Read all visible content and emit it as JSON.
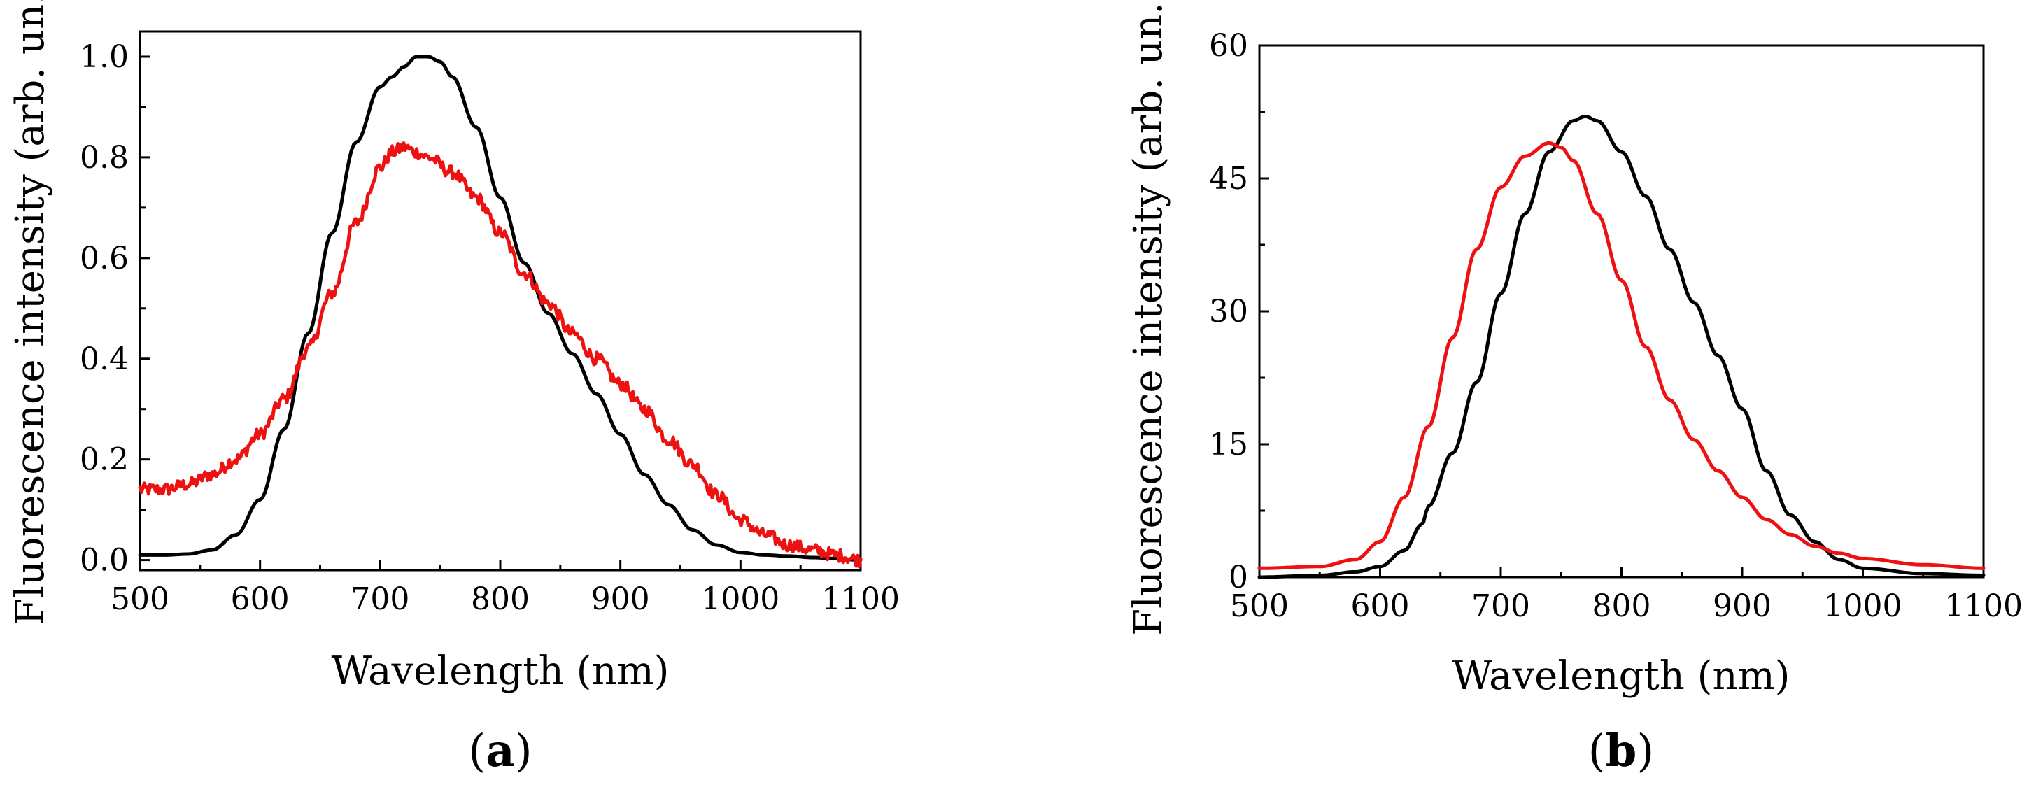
{
  "chart_data": [
    {
      "type": "line",
      "panel_label": "a",
      "xlabel": "Wavelength (nm)",
      "ylabel": "Fluorescence intensity (arb. un.)",
      "xlim": [
        500,
        1100
      ],
      "ylim": [
        -0.02,
        1.05
      ],
      "xticks": [
        500,
        600,
        700,
        800,
        900,
        1000,
        1100
      ],
      "yticks": [
        0.0,
        0.2,
        0.4,
        0.6,
        0.8,
        1.0
      ],
      "ytick_labels": [
        "0.0",
        "0.2",
        "0.4",
        "0.6",
        "0.8",
        "1.0"
      ],
      "series": [
        {
          "name": "black",
          "color": "#000000",
          "noisy": false,
          "x": [
            500,
            520,
            540,
            560,
            580,
            600,
            620,
            640,
            660,
            680,
            700,
            710,
            720,
            730,
            740,
            750,
            760,
            780,
            800,
            820,
            840,
            860,
            880,
            900,
            920,
            940,
            960,
            980,
            1000,
            1020,
            1040,
            1060,
            1080,
            1100
          ],
          "y": [
            0.01,
            0.01,
            0.012,
            0.02,
            0.05,
            0.12,
            0.26,
            0.45,
            0.65,
            0.83,
            0.94,
            0.96,
            0.98,
            1.0,
            1.0,
            0.99,
            0.96,
            0.86,
            0.72,
            0.59,
            0.49,
            0.41,
            0.33,
            0.25,
            0.17,
            0.11,
            0.06,
            0.03,
            0.015,
            0.01,
            0.008,
            0.005,
            0.003,
            0.0
          ]
        },
        {
          "name": "red",
          "color": "#ee1111",
          "noisy": true,
          "x": [
            500,
            520,
            540,
            560,
            580,
            600,
            620,
            640,
            660,
            680,
            700,
            710,
            720,
            730,
            740,
            760,
            780,
            800,
            820,
            840,
            860,
            880,
            900,
            920,
            940,
            960,
            980,
            1000,
            1020,
            1040,
            1060,
            1080,
            1100
          ],
          "y": [
            0.14,
            0.14,
            0.15,
            0.17,
            0.2,
            0.25,
            0.32,
            0.42,
            0.53,
            0.67,
            0.78,
            0.81,
            0.82,
            0.81,
            0.8,
            0.77,
            0.72,
            0.65,
            0.57,
            0.51,
            0.45,
            0.4,
            0.35,
            0.3,
            0.24,
            0.19,
            0.13,
            0.08,
            0.05,
            0.03,
            0.02,
            0.01,
            0.0
          ]
        }
      ]
    },
    {
      "type": "line",
      "panel_label": "b",
      "xlabel": "Wavelength (nm)",
      "ylabel": "Fluorescence intensity (arb. un.)",
      "xlim": [
        500,
        1100
      ],
      "ylim": [
        0,
        60
      ],
      "xticks": [
        500,
        600,
        700,
        800,
        900,
        1000,
        1100
      ],
      "yticks": [
        0,
        15,
        30,
        45,
        60
      ],
      "ytick_labels": [
        "0",
        "15",
        "30",
        "45",
        "60"
      ],
      "series": [
        {
          "name": "black",
          "color": "#000000",
          "noisy": false,
          "x": [
            500,
            550,
            580,
            600,
            620,
            635,
            640,
            660,
            680,
            700,
            720,
            740,
            760,
            770,
            780,
            800,
            820,
            840,
            860,
            880,
            900,
            920,
            940,
            960,
            980,
            1000,
            1050,
            1100
          ],
          "y": [
            0,
            0.2,
            0.6,
            1.2,
            3.0,
            6.0,
            8.0,
            14.0,
            22.0,
            32.0,
            41.0,
            48.0,
            51.5,
            52.0,
            51.5,
            48.0,
            43.0,
            37.0,
            31.0,
            25.0,
            19.0,
            12.0,
            7.0,
            4.0,
            2.0,
            1.0,
            0.4,
            0.2
          ]
        },
        {
          "name": "red",
          "color": "#ee1111",
          "noisy": false,
          "x": [
            500,
            550,
            580,
            600,
            620,
            640,
            660,
            680,
            700,
            720,
            740,
            750,
            760,
            780,
            800,
            820,
            840,
            860,
            880,
            900,
            920,
            940,
            960,
            980,
            1000,
            1050,
            1100
          ],
          "y": [
            1.0,
            1.2,
            2.0,
            4.0,
            9.0,
            17.0,
            27.0,
            37.0,
            44.0,
            47.5,
            49.0,
            48.5,
            47.0,
            41.0,
            33.5,
            26.0,
            20.0,
            15.5,
            12.0,
            9.0,
            6.5,
            4.8,
            3.5,
            2.7,
            2.1,
            1.4,
            1.0
          ]
        }
      ]
    }
  ]
}
